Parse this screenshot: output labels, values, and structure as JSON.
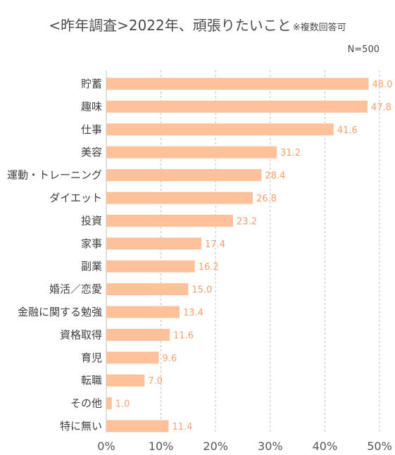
{
  "header": {
    "title": "<昨年調査>2022年、頑張りたいこと",
    "note": "※複数回答可",
    "sample_size": "N=500"
  },
  "chart_data": {
    "type": "bar",
    "orientation": "horizontal",
    "categories": [
      "貯蓄",
      "趣味",
      "仕事",
      "美容",
      "運動・トレーニング",
      "ダイエット",
      "投資",
      "家事",
      "副業",
      "婚活／恋愛",
      "金融に関する勉強",
      "資格取得",
      "育児",
      "転職",
      "その他",
      "特に無い"
    ],
    "values": [
      48.0,
      47.8,
      41.6,
      31.2,
      28.4,
      26.8,
      23.2,
      17.4,
      16.2,
      15.0,
      13.4,
      11.6,
      9.6,
      7.0,
      1.0,
      11.4
    ],
    "value_labels": [
      "48.0",
      "47.8",
      "41.6",
      "31.2",
      "28.4",
      "26.8",
      "23.2",
      "17.4",
      "16.2",
      "15.0",
      "13.4",
      "11.6",
      "9.6",
      "7.0",
      "1.0",
      "11.4"
    ],
    "x_ticks": [
      "0%",
      "10%",
      "20%",
      "30%",
      "40%",
      "50%"
    ],
    "xlim": [
      0,
      50
    ],
    "grid": "vertical dashed",
    "colors": {
      "bar": "#ffc19a",
      "value_label": "#f4a26f",
      "grid": "#bfbfbf"
    }
  }
}
